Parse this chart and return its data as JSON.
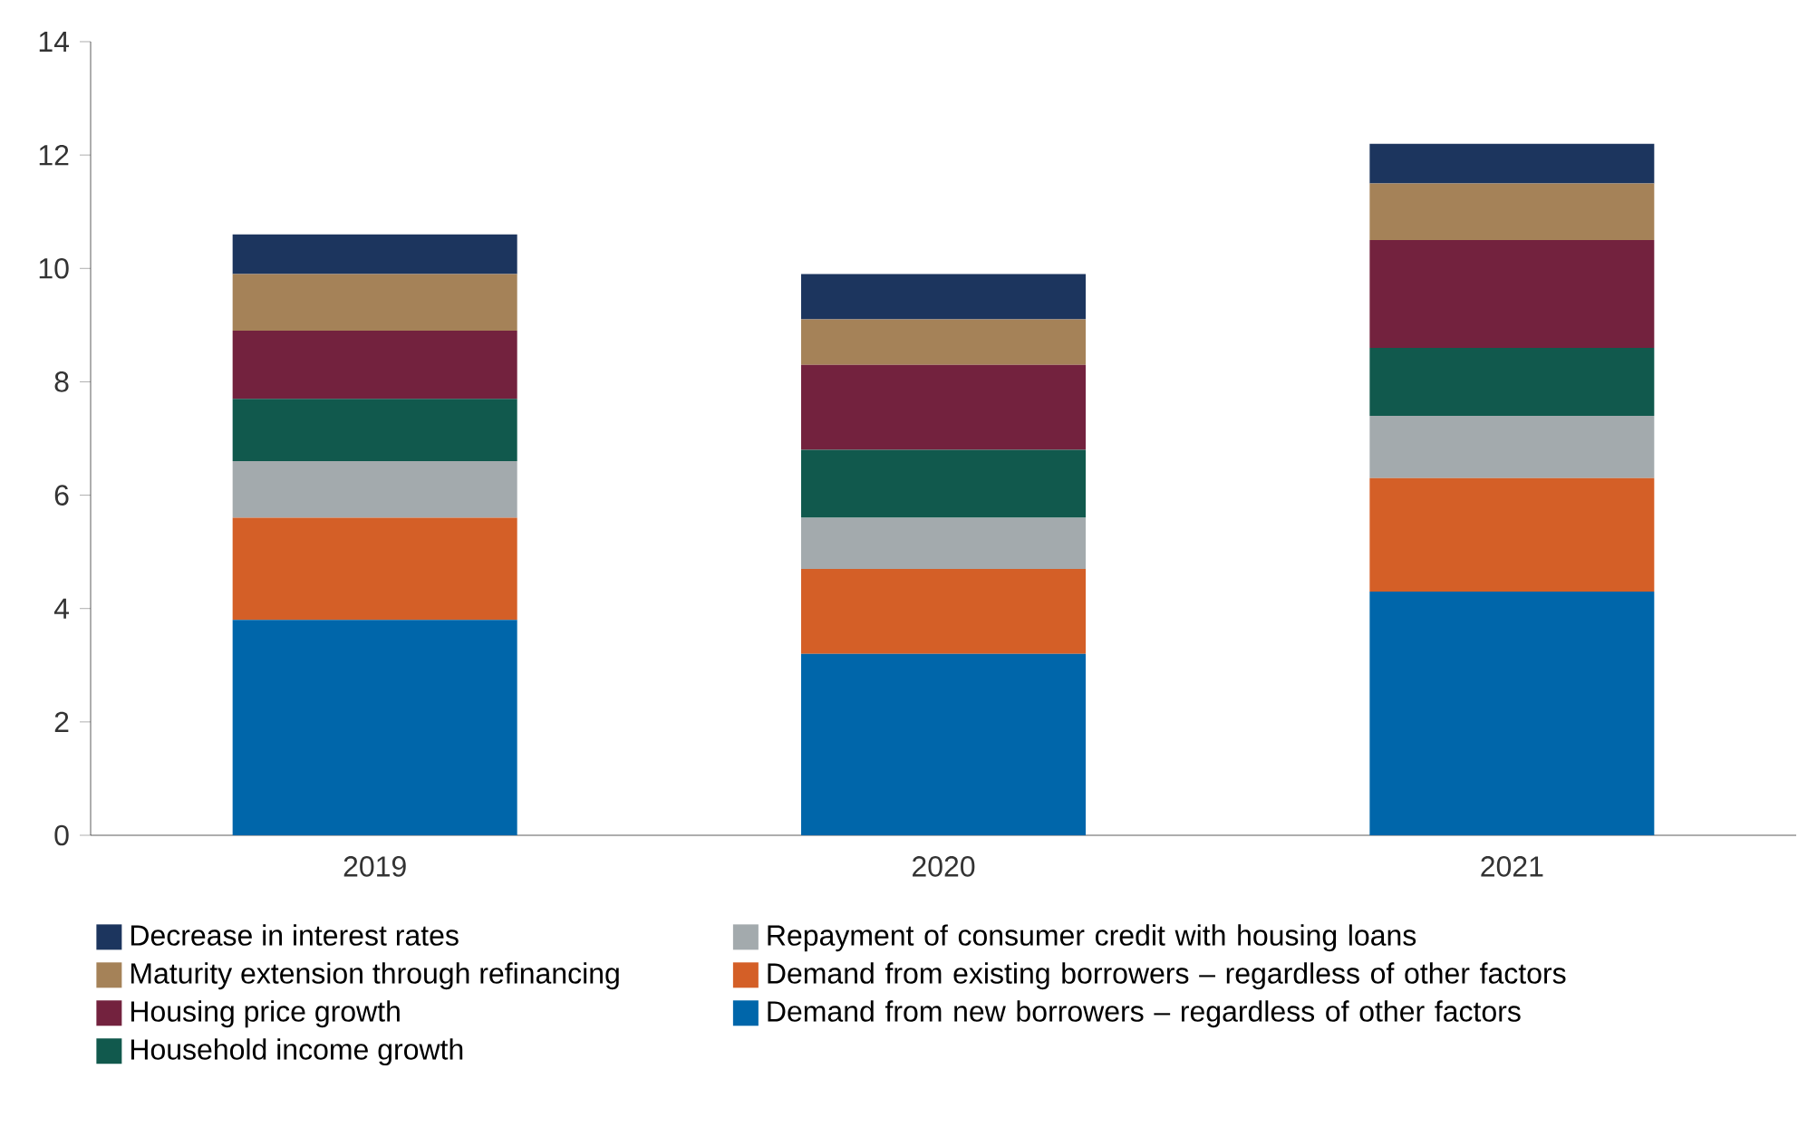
{
  "chart_data": {
    "type": "bar",
    "stacked": true,
    "categories": [
      "2019",
      "2020",
      "2021"
    ],
    "series": [
      {
        "name": "Demand from new borrowers – regardless of other factors",
        "color": "#0066aa",
        "values": [
          3.8,
          3.2,
          4.3
        ]
      },
      {
        "name": "Demand from existing borrowers – regardless of other factors",
        "color": "#d45f27",
        "values": [
          1.8,
          1.5,
          2.0
        ]
      },
      {
        "name": "Repayment of consumer credit with housing loans",
        "color": "#a3aaad",
        "values": [
          1.0,
          0.9,
          1.1
        ]
      },
      {
        "name": "Household income growth",
        "color": "#11594d",
        "values": [
          1.1,
          1.2,
          1.2
        ]
      },
      {
        "name": "Housing price growth",
        "color": "#73223e",
        "values": [
          1.2,
          1.5,
          1.9
        ]
      },
      {
        "name": "Maturity extension through refinancing",
        "color": "#a58258",
        "values": [
          1.0,
          0.8,
          1.0
        ]
      },
      {
        "name": "Decrease in interest rates",
        "color": "#1c355e",
        "values": [
          0.7,
          0.8,
          0.7
        ]
      }
    ],
    "ylim": [
      0,
      14
    ],
    "yticks": [
      0,
      2,
      4,
      6,
      8,
      10,
      12,
      14
    ],
    "legend": "bottom"
  }
}
